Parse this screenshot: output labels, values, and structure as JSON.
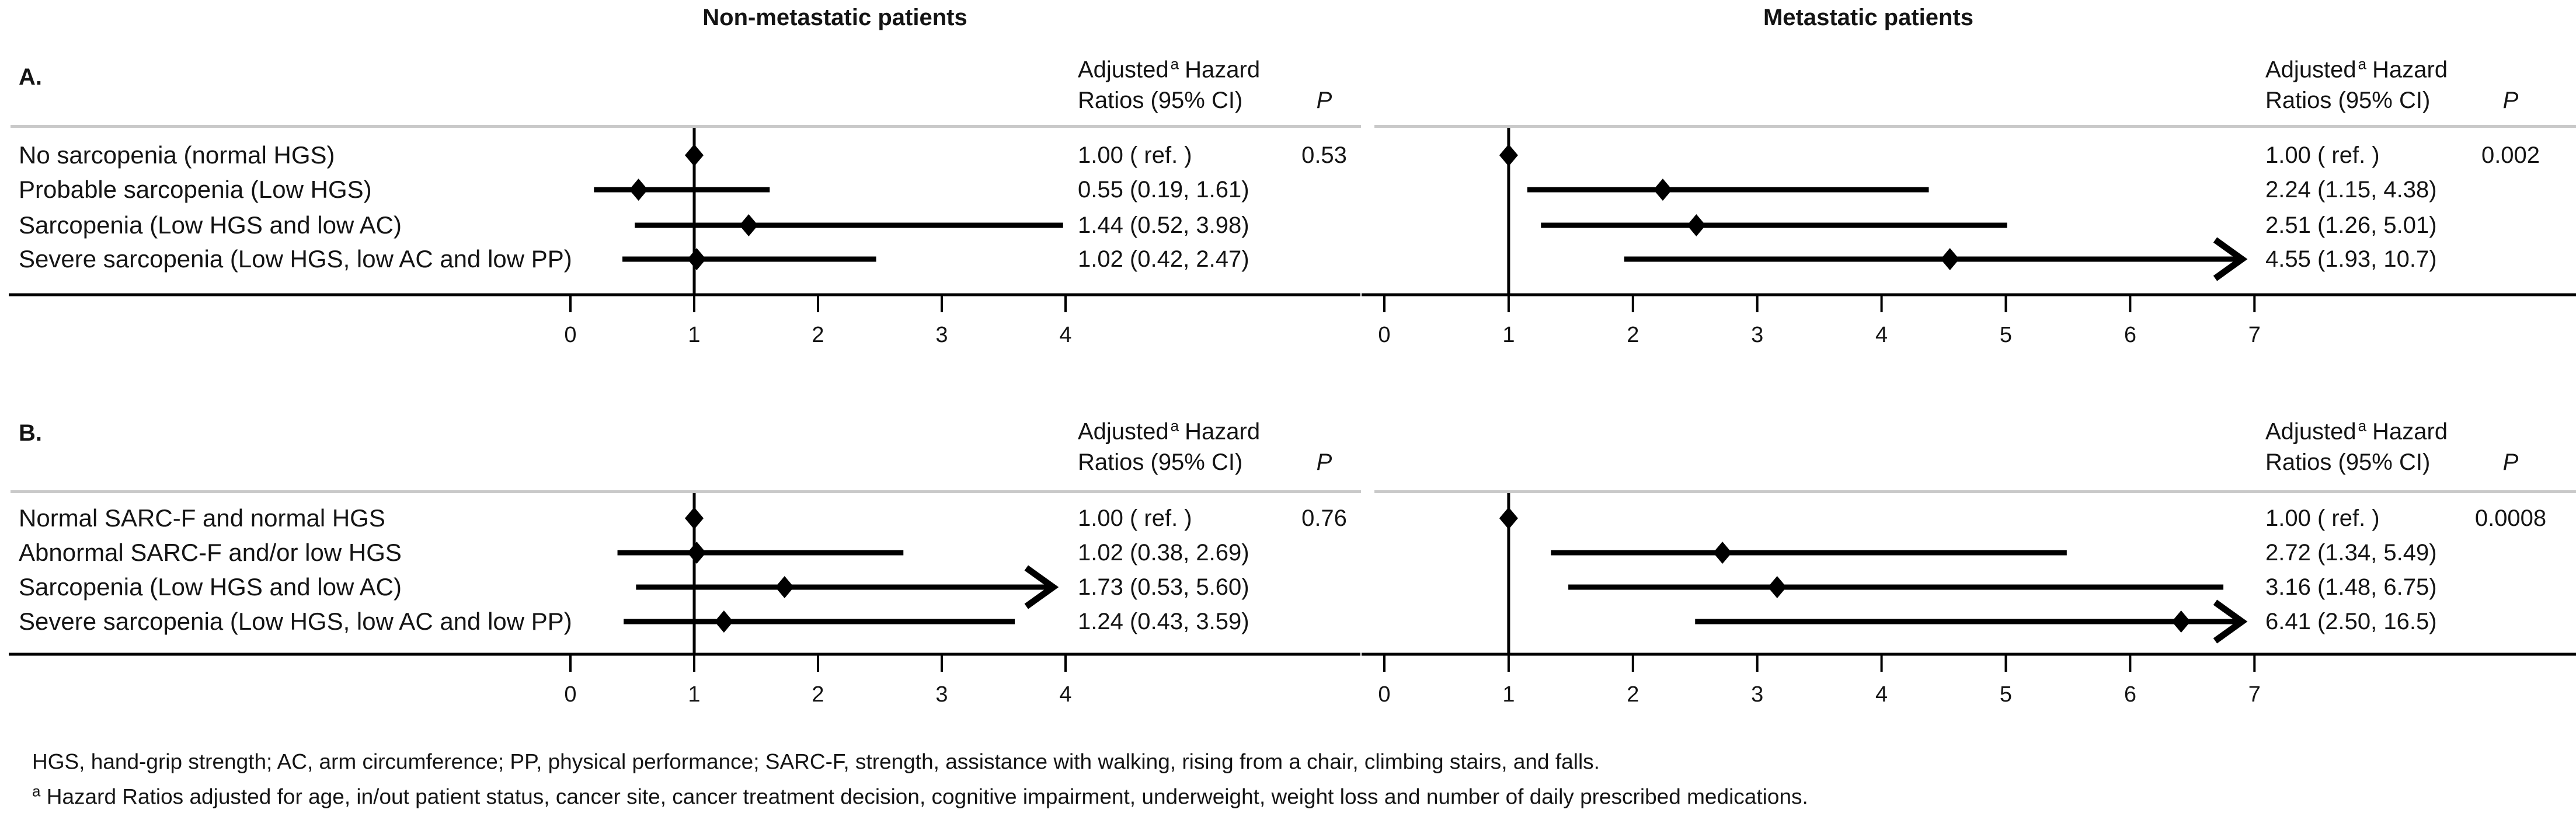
{
  "column_titles": {
    "left": "Non-metastatic patients",
    "right": "Metastatic patients"
  },
  "panel_letters": [
    "A.",
    "B."
  ],
  "hr_header": {
    "word1": "Adjusted",
    "sup": "a",
    "word2": "Hazard",
    "line2": "Ratios (95% CI)",
    "p_label": "P"
  },
  "footnotes": {
    "line1": "HGS, hand-grip strength; AC, arm circumference; PP, physical performance; SARC-F, strength, assistance with walking, rising from a chair, climbing stairs, and falls.",
    "line2_sup": "a",
    "line2": " Hazard Ratios adjusted for age, in/out patient status, cancer site, cancer treatment decision, cognitive impairment, underweight, weight loss and number of daily prescribed medications."
  },
  "colors": {
    "text": "#141414",
    "marker": "#000000",
    "rule": "#c9c9c9",
    "background": "#ffffff"
  },
  "chart_data": [
    {
      "panel": "A",
      "row_labels": [
        "No sarcopenia (normal HGS)",
        "Probable sarcopenia (Low HGS)",
        "Sarcopenia (Low HGS and low AC)",
        "Severe sarcopenia (Low HGS, low AC and low PP)"
      ],
      "plots": [
        {
          "type": "forest",
          "side": "left",
          "title": "Non-metastatic patients",
          "xlim": [
            0,
            4
          ],
          "ticks": [
            0,
            1,
            2,
            3,
            4
          ],
          "ref": 1,
          "p": "0.53",
          "rows": [
            {
              "est": 1.0,
              "lo": null,
              "hi": null,
              "display": "1.00 ( ref. )"
            },
            {
              "est": 0.55,
              "lo": 0.19,
              "hi": 1.61,
              "display": "0.55 (0.19, 1.61)"
            },
            {
              "est": 1.44,
              "lo": 0.52,
              "hi": 3.98,
              "display": "1.44 (0.52, 3.98)"
            },
            {
              "est": 1.02,
              "lo": 0.42,
              "hi": 2.47,
              "display": "1.02 (0.42, 2.47)"
            }
          ]
        },
        {
          "type": "forest",
          "side": "right",
          "title": "Metastatic patients",
          "xlim": [
            0,
            7
          ],
          "ticks": [
            0,
            1,
            2,
            3,
            4,
            5,
            6,
            7
          ],
          "ref": 1,
          "p": "0.002",
          "rows": [
            {
              "est": 1.0,
              "lo": null,
              "hi": null,
              "display": "1.00 ( ref. )"
            },
            {
              "est": 2.24,
              "lo": 1.15,
              "hi": 4.38,
              "display": "2.24 (1.15, 4.38)"
            },
            {
              "est": 2.51,
              "lo": 1.26,
              "hi": 5.01,
              "display": "2.51 (1.26, 5.01)"
            },
            {
              "est": 4.55,
              "lo": 1.93,
              "hi": 10.7,
              "display": "4.55 (1.93, 10.7)"
            }
          ]
        }
      ]
    },
    {
      "panel": "B",
      "row_labels": [
        "Normal SARC-F and normal HGS",
        "Abnormal SARC-F and/or low HGS",
        "Sarcopenia (Low HGS and low AC)",
        "Severe sarcopenia (Low HGS, low AC and low PP)"
      ],
      "plots": [
        {
          "type": "forest",
          "side": "left",
          "title": "Non-metastatic patients",
          "xlim": [
            0,
            4
          ],
          "ticks": [
            0,
            1,
            2,
            3,
            4
          ],
          "ref": 1,
          "p": "0.76",
          "rows": [
            {
              "est": 1.0,
              "lo": null,
              "hi": null,
              "display": "1.00 ( ref. )"
            },
            {
              "est": 1.02,
              "lo": 0.38,
              "hi": 2.69,
              "display": "1.02 (0.38, 2.69)"
            },
            {
              "est": 1.73,
              "lo": 0.53,
              "hi": 5.6,
              "display": "1.73 (0.53, 5.60)"
            },
            {
              "est": 1.24,
              "lo": 0.43,
              "hi": 3.59,
              "display": "1.24 (0.43, 3.59)"
            }
          ]
        },
        {
          "type": "forest",
          "side": "right",
          "title": "Metastatic patients",
          "xlim": [
            0,
            7
          ],
          "ticks": [
            0,
            1,
            2,
            3,
            4,
            5,
            6,
            7
          ],
          "ref": 1,
          "p": "0.0008",
          "rows": [
            {
              "est": 1.0,
              "lo": null,
              "hi": null,
              "display": "1.00 ( ref. )"
            },
            {
              "est": 2.72,
              "lo": 1.34,
              "hi": 5.49,
              "display": "2.72 (1.34, 5.49)"
            },
            {
              "est": 3.16,
              "lo": 1.48,
              "hi": 6.75,
              "display": "3.16 (1.48, 6.75)"
            },
            {
              "est": 6.41,
              "lo": 2.5,
              "hi": 16.5,
              "display": "6.41 (2.50, 16.5)"
            }
          ]
        }
      ]
    }
  ]
}
